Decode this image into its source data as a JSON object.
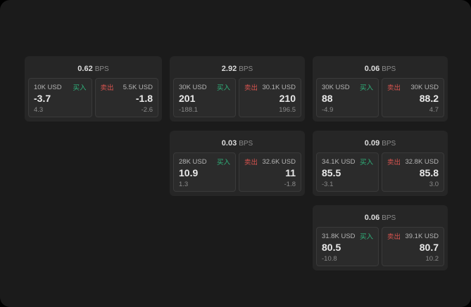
{
  "labels": {
    "bps_unit": "BPS",
    "buy": "买入",
    "sell": "卖出"
  },
  "colors": {
    "surface": "#1b1b1b",
    "card-bg": "#262626",
    "panel-bg": "#2b2b2b",
    "panel-border": "#3a3a3a",
    "buy-green": "#2fb47c",
    "sell-red": "#d9544f",
    "text-primary": "#dcdcdc",
    "text-secondary": "#b5b5b5",
    "text-bright": "#e9e9e9",
    "text-muted": "#8b8b8b"
  },
  "cards": [
    {
      "bps": "0.62",
      "buy_amount": "10K USD",
      "buy_price": "-3.7",
      "buy_delta": "4.3",
      "sell_amount": "5.5K USD",
      "sell_price": "-1.8",
      "sell_delta": "-2.6"
    },
    {
      "bps": "2.92",
      "buy_amount": "30K USD",
      "buy_price": "201",
      "buy_delta": "-188.1",
      "sell_amount": "30.1K USD",
      "sell_price": "210",
      "sell_delta": "196.5"
    },
    {
      "bps": "0.06",
      "buy_amount": "30K USD",
      "buy_price": "88",
      "buy_delta": "-4.9",
      "sell_amount": "30K USD",
      "sell_price": "88.2",
      "sell_delta": "4.7"
    },
    {
      "bps": "0.03",
      "buy_amount": "28K USD",
      "buy_price": "10.9",
      "buy_delta": "1.3",
      "sell_amount": "32.6K USD",
      "sell_price": "11",
      "sell_delta": "-1.8"
    },
    {
      "bps": "0.09",
      "buy_amount": "34.1K USD",
      "buy_price": "85.5",
      "buy_delta": "-3.1",
      "sell_amount": "32.8K USD",
      "sell_price": "85.8",
      "sell_delta": "3.0"
    },
    {
      "bps": "0.06",
      "buy_amount": "31.8K USD",
      "buy_price": "80.5",
      "buy_delta": "-10.8",
      "sell_amount": "39.1K USD",
      "sell_price": "80.7",
      "sell_delta": "10.2"
    }
  ]
}
